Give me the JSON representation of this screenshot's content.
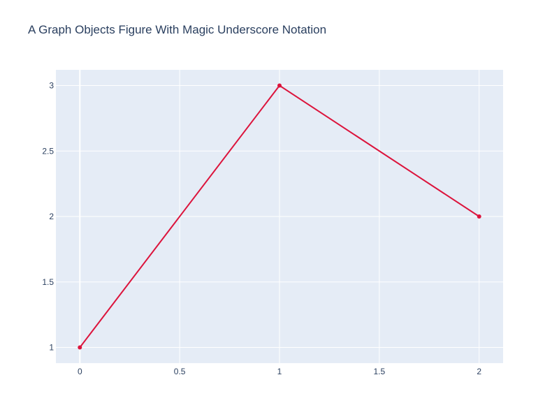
{
  "chart_data": {
    "type": "line",
    "title": "A Graph Objects Figure With Magic Underscore Notation",
    "xlabel": "",
    "ylabel": "",
    "xlim": [
      -0.12,
      2.12
    ],
    "ylim": [
      0.88,
      3.12
    ],
    "x_ticks": [
      0,
      0.5,
      1,
      1.5,
      2
    ],
    "x_tick_labels": [
      "0",
      "0.5",
      "1",
      "1.5",
      "2"
    ],
    "y_ticks": [
      1,
      1.5,
      2,
      2.5,
      3
    ],
    "y_tick_labels": [
      "1",
      "1.5",
      "2",
      "2.5",
      "3"
    ],
    "grid": true,
    "legend": false,
    "series": [
      {
        "x": [
          0,
          1,
          2
        ],
        "y": [
          1,
          3,
          2
        ],
        "mode": "lines+markers",
        "color": "#dc143c"
      }
    ]
  },
  "colors": {
    "plot_background": "#e5ecf6",
    "grid": "#ffffff",
    "text": "#2a3f5f"
  }
}
